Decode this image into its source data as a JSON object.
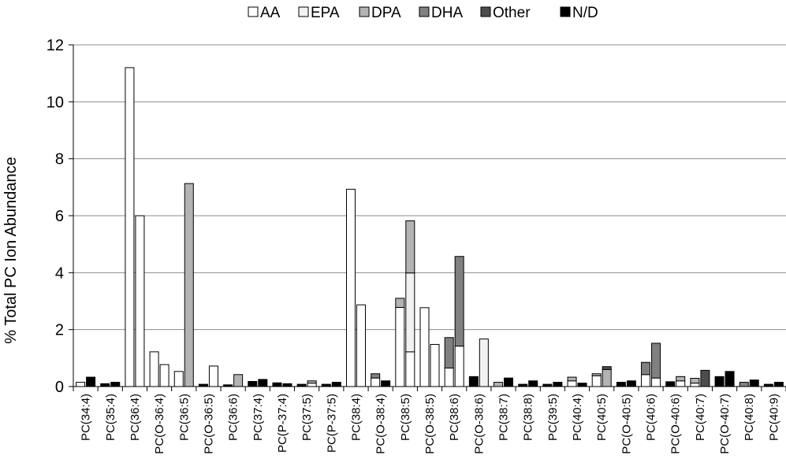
{
  "chart_data": {
    "type": "bar",
    "stacked": true,
    "ylabel": "% Total PC Ion Abundance",
    "ylim": [
      0,
      12
    ],
    "yticks": [
      0,
      2,
      4,
      6,
      8,
      10,
      12
    ],
    "grid": true,
    "legend_position": "top",
    "categories": [
      "PC(34:4)",
      "PC(35:4)",
      "PC(36:4)",
      "PC(O-36:4)",
      "PC(36:5)",
      "PC(O-36:5)",
      "PC(36:6)",
      "PC(37:4)",
      "PC(P-37:4)",
      "PC(37:5)",
      "PC(P-37:5)",
      "PC(38:4)",
      "PC(O-38:4)",
      "PC(38:5)",
      "PC(O-38:5)",
      "PC(38:6)",
      "PC(O-38:6)",
      "PC(38:7)",
      "PC(38:8)",
      "PC(39:5)",
      "PC(40:4)",
      "PC(40:5)",
      "PC(O-40:5)",
      "PC(40:6)",
      "PC(O-40:6)",
      "PC(40:7)",
      "PC(O-40:7)",
      "PC(40:8)",
      "PC(40:9)"
    ],
    "bars": [
      {
        "category_index": 0,
        "segments": [
          0.15,
          0,
          0,
          0,
          0,
          0
        ]
      },
      {
        "category_index": 0,
        "segments": [
          0,
          0,
          0,
          0,
          0,
          0.33
        ]
      },
      {
        "category_index": 1,
        "segments": [
          0,
          0,
          0,
          0,
          0,
          0.1
        ]
      },
      {
        "category_index": 1,
        "segments": [
          0,
          0,
          0,
          0,
          0,
          0.15
        ]
      },
      {
        "category_index": 2,
        "segments": [
          11.2,
          0,
          0,
          0,
          0,
          0
        ]
      },
      {
        "category_index": 2,
        "segments": [
          6.0,
          0,
          0,
          0,
          0,
          0
        ]
      },
      {
        "category_index": 3,
        "segments": [
          1.22,
          0,
          0,
          0,
          0,
          0
        ]
      },
      {
        "category_index": 3,
        "segments": [
          0.77,
          0,
          0,
          0,
          0,
          0
        ]
      },
      {
        "category_index": 4,
        "segments": [
          0.53,
          0,
          0,
          0,
          0,
          0
        ]
      },
      {
        "category_index": 4,
        "segments": [
          0,
          0,
          7.13,
          0,
          0,
          0
        ]
      },
      {
        "category_index": 5,
        "segments": [
          0,
          0,
          0,
          0,
          0,
          0.08
        ]
      },
      {
        "category_index": 5,
        "segments": [
          0.72,
          0,
          0,
          0,
          0,
          0
        ]
      },
      {
        "category_index": 6,
        "segments": [
          0,
          0,
          0,
          0,
          0,
          0.06
        ]
      },
      {
        "category_index": 6,
        "segments": [
          0,
          0,
          0.42,
          0,
          0,
          0
        ]
      },
      {
        "category_index": 7,
        "segments": [
          0,
          0,
          0,
          0,
          0,
          0.18
        ]
      },
      {
        "category_index": 7,
        "segments": [
          0,
          0,
          0,
          0,
          0,
          0.25
        ]
      },
      {
        "category_index": 8,
        "segments": [
          0,
          0,
          0,
          0,
          0,
          0.13
        ]
      },
      {
        "category_index": 8,
        "segments": [
          0,
          0,
          0,
          0,
          0,
          0.1
        ]
      },
      {
        "category_index": 9,
        "segments": [
          0,
          0,
          0,
          0,
          0,
          0.08
        ]
      },
      {
        "category_index": 9,
        "segments": [
          0.12,
          0,
          0.08,
          0,
          0,
          0
        ]
      },
      {
        "category_index": 10,
        "segments": [
          0,
          0,
          0,
          0,
          0,
          0.08
        ]
      },
      {
        "category_index": 10,
        "segments": [
          0,
          0,
          0,
          0,
          0,
          0.15
        ]
      },
      {
        "category_index": 11,
        "segments": [
          6.93,
          0,
          0,
          0,
          0,
          0
        ]
      },
      {
        "category_index": 11,
        "segments": [
          2.87,
          0,
          0,
          0,
          0,
          0
        ]
      },
      {
        "category_index": 12,
        "segments": [
          0.3,
          0,
          0,
          0.15,
          0,
          0
        ]
      },
      {
        "category_index": 12,
        "segments": [
          0,
          0,
          0,
          0,
          0,
          0.2
        ]
      },
      {
        "category_index": 13,
        "segments": [
          2.78,
          0,
          0.32,
          0,
          0,
          0
        ]
      },
      {
        "category_index": 13,
        "segments": [
          1.22,
          2.77,
          1.83,
          0,
          0,
          0
        ]
      },
      {
        "category_index": 14,
        "segments": [
          2.77,
          0,
          0,
          0,
          0,
          0
        ]
      },
      {
        "category_index": 14,
        "segments": [
          1.48,
          0,
          0,
          0,
          0,
          0
        ]
      },
      {
        "category_index": 15,
        "segments": [
          0.65,
          0,
          0,
          1.07,
          0,
          0
        ]
      },
      {
        "category_index": 15,
        "segments": [
          1.42,
          0,
          0,
          3.15,
          0,
          0
        ]
      },
      {
        "category_index": 16,
        "segments": [
          0,
          0,
          0,
          0,
          0,
          0.35
        ]
      },
      {
        "category_index": 16,
        "segments": [
          0,
          1.67,
          0,
          0,
          0,
          0
        ]
      },
      {
        "category_index": 17,
        "segments": [
          0,
          0,
          0.15,
          0,
          0,
          0
        ]
      },
      {
        "category_index": 17,
        "segments": [
          0,
          0,
          0,
          0,
          0,
          0.3
        ]
      },
      {
        "category_index": 18,
        "segments": [
          0,
          0,
          0,
          0,
          0,
          0.08
        ]
      },
      {
        "category_index": 18,
        "segments": [
          0,
          0,
          0,
          0,
          0,
          0.2
        ]
      },
      {
        "category_index": 19,
        "segments": [
          0,
          0,
          0,
          0,
          0,
          0.08
        ]
      },
      {
        "category_index": 19,
        "segments": [
          0,
          0,
          0,
          0,
          0,
          0.15
        ]
      },
      {
        "category_index": 20,
        "segments": [
          0.2,
          0,
          0.13,
          0,
          0,
          0
        ]
      },
      {
        "category_index": 20,
        "segments": [
          0,
          0,
          0,
          0,
          0,
          0.12
        ]
      },
      {
        "category_index": 21,
        "segments": [
          0.38,
          0,
          0.07,
          0,
          0,
          0
        ]
      },
      {
        "category_index": 21,
        "segments": [
          0,
          0,
          0.6,
          0,
          0.1,
          0
        ]
      },
      {
        "category_index": 22,
        "segments": [
          0,
          0,
          0,
          0,
          0,
          0.15
        ]
      },
      {
        "category_index": 22,
        "segments": [
          0,
          0,
          0,
          0,
          0,
          0.2
        ]
      },
      {
        "category_index": 23,
        "segments": [
          0.42,
          0,
          0,
          0.43,
          0,
          0
        ]
      },
      {
        "category_index": 23,
        "segments": [
          0.3,
          0,
          0,
          1.22,
          0,
          0
        ]
      },
      {
        "category_index": 24,
        "segments": [
          0,
          0,
          0,
          0,
          0,
          0.17
        ]
      },
      {
        "category_index": 24,
        "segments": [
          0.2,
          0,
          0.15,
          0,
          0,
          0
        ]
      },
      {
        "category_index": 25,
        "segments": [
          0.12,
          0,
          0.17,
          0,
          0,
          0
        ]
      },
      {
        "category_index": 25,
        "segments": [
          0,
          0,
          0,
          0,
          0.57,
          0
        ]
      },
      {
        "category_index": 26,
        "segments": [
          0,
          0,
          0,
          0,
          0,
          0.35
        ]
      },
      {
        "category_index": 26,
        "segments": [
          0,
          0,
          0,
          0,
          0,
          0.53
        ]
      },
      {
        "category_index": 27,
        "segments": [
          0,
          0,
          0,
          0.15,
          0,
          0
        ]
      },
      {
        "category_index": 27,
        "segments": [
          0,
          0,
          0,
          0,
          0,
          0.23
        ]
      },
      {
        "category_index": 28,
        "segments": [
          0,
          0,
          0,
          0,
          0,
          0.08
        ]
      },
      {
        "category_index": 28,
        "segments": [
          0,
          0,
          0,
          0,
          0,
          0.15
        ]
      }
    ],
    "series": [
      {
        "name": "AA",
        "color": "#ffffff"
      },
      {
        "name": "EPA",
        "color": "#f2f2f2"
      },
      {
        "name": "DPA",
        "color": "#b3b3b3"
      },
      {
        "name": "DHA",
        "color": "#808080"
      },
      {
        "name": "Other",
        "color": "#4d4d4d"
      },
      {
        "name": "N/D",
        "color": "#000000"
      }
    ]
  }
}
